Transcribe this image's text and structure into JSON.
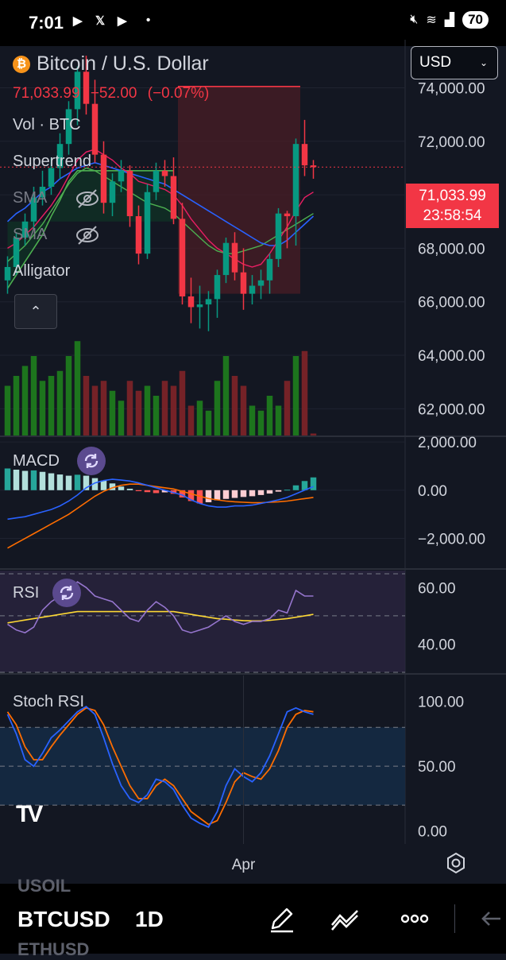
{
  "status_bar": {
    "time": "7:01",
    "battery": "70",
    "icons": [
      "youtube-icon",
      "x-icon",
      "youtube-icon",
      "dot-icon",
      "mute-icon",
      "wifi-icon",
      "signal-icon"
    ]
  },
  "header": {
    "symbol_title": "Bitcoin / U.S. Dollar",
    "coin_glyph": "₿",
    "last_price": "71,033.99",
    "change": "−52.00",
    "change_pct": "(−0.07%)",
    "currency": "USD",
    "down_color": "#f23645",
    "up_color": "#089981"
  },
  "legend": {
    "items": [
      "Vol · BTC",
      "Supertrend",
      "SMA",
      "SMA",
      "Alligator"
    ],
    "hidden_icon": "eye-off-icon",
    "collapse_icon": "chevron-up-icon"
  },
  "price_tag": {
    "price": "71,033.99",
    "countdown": "23:58:54"
  },
  "chart_data": [
    {
      "type": "candlestick",
      "pane": "price",
      "ylim": [
        61000,
        75500
      ],
      "yticks": [
        62000,
        64000,
        66000,
        68000,
        70000,
        72000,
        74000
      ],
      "ytick_labels": [
        "62,000.00",
        "64,000.00",
        "66,000.00",
        "68,000.00",
        "70,000.00",
        "72,000.00",
        "74,000.00"
      ],
      "x_tick_label": "Apr",
      "candles": [
        {
          "o": 66800,
          "h": 67700,
          "l": 66300,
          "c": 67300
        },
        {
          "o": 67300,
          "h": 68600,
          "l": 67000,
          "c": 68400
        },
        {
          "o": 68400,
          "h": 69300,
          "l": 68100,
          "c": 69000
        },
        {
          "o": 69000,
          "h": 70300,
          "l": 68700,
          "c": 69900
        },
        {
          "o": 69900,
          "h": 70900,
          "l": 69600,
          "c": 70300
        },
        {
          "o": 70300,
          "h": 71400,
          "l": 70000,
          "c": 71000
        },
        {
          "o": 71000,
          "h": 72300,
          "l": 70600,
          "c": 71900
        },
        {
          "o": 71900,
          "h": 73500,
          "l": 71500,
          "c": 73200
        },
        {
          "o": 73200,
          "h": 74800,
          "l": 72600,
          "c": 74600
        },
        {
          "o": 74600,
          "h": 75200,
          "l": 73000,
          "c": 73400
        },
        {
          "o": 73400,
          "h": 74300,
          "l": 71200,
          "c": 71500
        },
        {
          "o": 71500,
          "h": 72000,
          "l": 69300,
          "c": 69700
        },
        {
          "o": 69700,
          "h": 70800,
          "l": 69200,
          "c": 70500
        },
        {
          "o": 70500,
          "h": 71300,
          "l": 70100,
          "c": 70900
        },
        {
          "o": 70900,
          "h": 71100,
          "l": 68800,
          "c": 69200
        },
        {
          "o": 69200,
          "h": 69600,
          "l": 67400,
          "c": 67800
        },
        {
          "o": 67800,
          "h": 70400,
          "l": 67600,
          "c": 70100
        },
        {
          "o": 70100,
          "h": 71200,
          "l": 69800,
          "c": 70900
        },
        {
          "o": 70900,
          "h": 71300,
          "l": 70300,
          "c": 70700
        },
        {
          "o": 70700,
          "h": 71400,
          "l": 68900,
          "c": 69100
        },
        {
          "o": 69100,
          "h": 69700,
          "l": 65900,
          "c": 66200
        },
        {
          "o": 66200,
          "h": 66900,
          "l": 65200,
          "c": 65800
        },
        {
          "o": 65800,
          "h": 66600,
          "l": 65000,
          "c": 65900
        },
        {
          "o": 65900,
          "h": 66400,
          "l": 64900,
          "c": 66100
        },
        {
          "o": 66100,
          "h": 67200,
          "l": 65400,
          "c": 67000
        },
        {
          "o": 67000,
          "h": 68400,
          "l": 66700,
          "c": 68200
        },
        {
          "o": 68200,
          "h": 68600,
          "l": 66800,
          "c": 67100
        },
        {
          "o": 67100,
          "h": 68000,
          "l": 65700,
          "c": 66300
        },
        {
          "o": 66300,
          "h": 67000,
          "l": 65900,
          "c": 66600
        },
        {
          "o": 66600,
          "h": 67200,
          "l": 66100,
          "c": 66800
        },
        {
          "o": 66800,
          "h": 67800,
          "l": 66300,
          "c": 67600
        },
        {
          "o": 67600,
          "h": 69500,
          "l": 67300,
          "c": 69300
        },
        {
          "o": 69300,
          "h": 69400,
          "l": 68000,
          "c": 69200
        },
        {
          "o": 69200,
          "h": 72100,
          "l": 68100,
          "c": 71900
        },
        {
          "o": 71900,
          "h": 72800,
          "l": 70700,
          "c": 71100
        },
        {
          "o": 71100,
          "h": 71300,
          "l": 70600,
          "c": 71034
        }
      ],
      "volume_relative": [
        0.5,
        0.6,
        0.7,
        0.8,
        0.55,
        0.6,
        0.65,
        0.8,
        0.95,
        0.6,
        0.5,
        0.55,
        0.45,
        0.35,
        0.55,
        0.45,
        0.5,
        0.4,
        0.55,
        0.5,
        0.65,
        0.3,
        0.35,
        0.25,
        0.55,
        0.8,
        0.6,
        0.5,
        0.3,
        0.25,
        0.4,
        0.3,
        0.55,
        0.8,
        0.85,
        0.02
      ],
      "supertrend": [
        66500,
        67000,
        67500,
        68000,
        68500,
        69200,
        69800,
        70500,
        70900,
        70900,
        70900,
        70900,
        70900,
        70900,
        70900,
        70900,
        70900,
        70900,
        70900,
        70900,
        74050,
        74050,
        74050,
        74050,
        74050,
        74050,
        74050,
        74050,
        74050,
        74050,
        74050,
        74050,
        74050,
        74050,
        74050,
        74050
      ],
      "sma_fast": [
        68000,
        68200,
        68500,
        68800,
        69200,
        69600,
        70100,
        70700,
        71300,
        71600,
        71700,
        71500,
        71300,
        71000,
        70800,
        70500,
        70400,
        70300,
        70200,
        70000,
        69600,
        69100,
        68700,
        68300,
        68000,
        67800,
        67600,
        67400,
        67300,
        67400,
        67800,
        68300,
        68800,
        69400,
        69900,
        70100
      ],
      "sma_slow": [
        69000,
        69300,
        69500,
        69800,
        70100,
        70300,
        70600,
        70800,
        71000,
        71100,
        71200,
        71100,
        71000,
        70900,
        70800,
        70700,
        70600,
        70500,
        70400,
        70200,
        70000,
        69800,
        69600,
        69400,
        69200,
        69000,
        68800,
        68600,
        68400,
        68200,
        68100,
        68100,
        68300,
        68600,
        68900,
        69200
      ],
      "alligator": [
        67500,
        67800,
        68100,
        68500,
        68900,
        69400,
        69900,
        70400,
        70800,
        71000,
        70900,
        70700,
        70500,
        70300,
        70100,
        69900,
        69700,
        69600,
        69500,
        69300,
        69000,
        68700,
        68400,
        68100,
        67900,
        67800,
        67800,
        67900,
        68000,
        68100,
        68300,
        68500,
        68700,
        68900,
        69100,
        69300
      ],
      "range_box": {
        "from_index": 20,
        "to_index": 33,
        "top": 74050,
        "bottom": 66300
      }
    },
    {
      "type": "macd",
      "pane": "MACD",
      "ylim": [
        -3200,
        2200
      ],
      "yticks": [
        -2000,
        0,
        2000
      ],
      "ytick_labels": [
        "−2,000.00",
        "0.00",
        "2,000.00"
      ],
      "histogram": [
        900,
        850,
        800,
        820,
        760,
        700,
        650,
        600,
        640,
        600,
        500,
        400,
        280,
        150,
        60,
        -40,
        -80,
        -120,
        -90,
        -150,
        -300,
        -450,
        -550,
        -500,
        -420,
        -360,
        -320,
        -280,
        -250,
        -200,
        -140,
        -60,
        20,
        200,
        380,
        530
      ],
      "macd_line": [
        -1200,
        -1150,
        -1100,
        -1000,
        -900,
        -800,
        -650,
        -450,
        -200,
        100,
        300,
        400,
        450,
        420,
        380,
        300,
        200,
        100,
        0,
        -100,
        -200,
        -400,
        -550,
        -650,
        -700,
        -700,
        -650,
        -650,
        -620,
        -550,
        -480,
        -400,
        -300,
        -150,
        0,
        150
      ],
      "signal_line": [
        -2400,
        -2200,
        -2000,
        -1800,
        -1600,
        -1400,
        -1200,
        -1000,
        -750,
        -500,
        -250,
        -50,
        100,
        200,
        250,
        250,
        200,
        150,
        100,
        50,
        -50,
        -150,
        -250,
        -350,
        -400,
        -450,
        -480,
        -500,
        -520,
        -520,
        -500,
        -480,
        -450,
        -400,
        -350,
        -300
      ]
    },
    {
      "type": "rsi",
      "pane": "RSI",
      "ylim": [
        30,
        66
      ],
      "yticks": [
        40,
        60
      ],
      "ytick_labels": [
        "40.00",
        "60.00"
      ],
      "bands": [
        30,
        50,
        70
      ],
      "rsi": [
        47,
        45,
        44,
        46,
        52,
        55,
        57,
        59,
        62,
        60,
        57,
        56,
        55,
        52,
        49,
        48,
        52,
        55,
        53,
        50,
        45,
        44,
        45,
        46,
        48,
        50,
        48,
        47,
        48,
        48,
        49,
        52,
        51,
        59,
        57,
        57
      ],
      "rsi_ma": [
        47.5,
        48,
        48.5,
        49,
        49.5,
        50,
        50.5,
        51,
        51.5,
        51.5,
        51.5,
        51.5,
        51.5,
        51.5,
        51.5,
        51.5,
        51.5,
        51.5,
        51.5,
        51.5,
        51,
        50.5,
        50,
        49.5,
        49,
        48.8,
        48.5,
        48.3,
        48.2,
        48.2,
        48.4,
        48.7,
        49,
        49.5,
        50,
        50.5
      ]
    },
    {
      "type": "stoch_rsi",
      "pane": "Stoch RSI",
      "ylim": [
        -10,
        120
      ],
      "yticks": [
        0,
        50,
        100
      ],
      "ytick_labels": [
        "0.00",
        "50.00",
        "100.00"
      ],
      "bands": [
        20,
        80
      ],
      "k": [
        90,
        75,
        55,
        50,
        60,
        72,
        78,
        85,
        92,
        96,
        90,
        72,
        52,
        35,
        25,
        22,
        28,
        40,
        38,
        32,
        20,
        10,
        6,
        3,
        15,
        35,
        48,
        42,
        38,
        45,
        58,
        75,
        92,
        95,
        92,
        90
      ],
      "d": [
        92,
        82,
        65,
        55,
        55,
        65,
        74,
        82,
        90,
        95,
        93,
        82,
        65,
        50,
        35,
        25,
        25,
        35,
        40,
        35,
        25,
        15,
        10,
        5,
        8,
        22,
        38,
        45,
        42,
        40,
        48,
        62,
        80,
        90,
        93,
        92
      ]
    }
  ],
  "panes": {
    "macd_label": "MACD",
    "rsi_label": "RSI",
    "stoch_label": "Stoch RSI",
    "reload_icon": "refresh-icon"
  },
  "toolbar": {
    "prev_symbol": "USOIL",
    "symbol": "BTCUSD",
    "interval": "1D",
    "next_symbol": "ETHUSD",
    "icons": [
      "pencil-icon",
      "indicators-icon",
      "more-icon",
      "back-arrow-icon"
    ]
  },
  "logo": "TV"
}
